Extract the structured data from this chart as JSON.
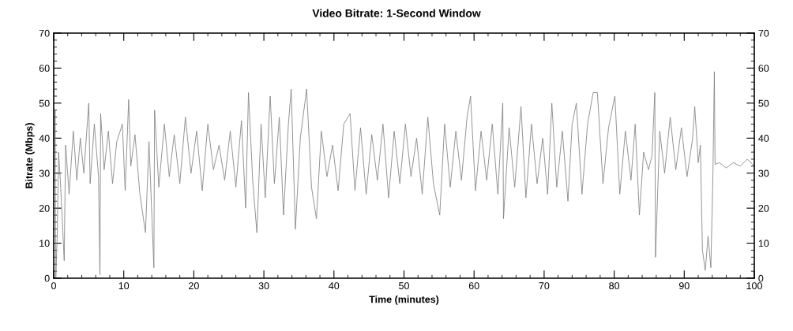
{
  "chart_data": {
    "type": "line",
    "title": "Video Bitrate: 1-Second Window",
    "xlabel": "Time (minutes)",
    "ylabel": "Bitrate (Mbps)",
    "xlim": [
      0,
      100
    ],
    "xticks": [
      0,
      10,
      20,
      30,
      40,
      50,
      60,
      70,
      80,
      90,
      100
    ],
    "ylim": [
      0,
      70
    ],
    "yticks": [
      0,
      10,
      20,
      30,
      40,
      50,
      60,
      70
    ],
    "y2lim": [
      0,
      70
    ],
    "y2ticks": [
      0,
      10,
      20,
      30,
      40,
      50,
      60,
      70
    ],
    "marker": "none",
    "line_style": "solid",
    "series": [
      {
        "color": "#7f7f7f",
        "x": [
          0,
          0.2,
          0.3,
          0.5,
          0.7,
          1.0,
          1.5,
          1.7,
          2.2,
          2.8,
          3.3,
          3.8,
          4.3,
          5.0,
          5.2,
          5.8,
          6.4,
          6.6,
          6.7,
          7.2,
          7.8,
          8.4,
          9.0,
          9.8,
          10.2,
          10.7,
          11.0,
          11.6,
          12.3,
          13.1,
          13.6,
          14.3,
          14.4,
          15.0,
          15.8,
          16.5,
          17.2,
          18.0,
          18.8,
          19.6,
          20.4,
          21.2,
          22.0,
          22.8,
          23.6,
          24.4,
          25.2,
          26.0,
          26.8,
          27.4,
          27.8,
          28.4,
          29.0,
          29.6,
          30.2,
          30.9,
          31.5,
          32.2,
          32.8,
          33.5,
          33.9,
          34.5,
          35.2,
          36.1,
          36.8,
          37.5,
          38.2,
          39.0,
          39.8,
          40.6,
          41.4,
          42.3,
          43.0,
          43.8,
          44.6,
          45.4,
          46.2,
          47.0,
          47.8,
          48.6,
          49.4,
          50.2,
          51.0,
          51.8,
          52.6,
          53.4,
          54.2,
          55.1,
          55.8,
          56.6,
          57.4,
          58.2,
          59.0,
          59.5,
          60.2,
          61.0,
          61.8,
          62.6,
          63.4,
          64.1,
          64.2,
          65.0,
          65.8,
          66.7,
          67.4,
          68.2,
          69.0,
          69.8,
          70.5,
          71.1,
          71.8,
          72.6,
          73.4,
          74.0,
          74.6,
          75.4,
          76.2,
          77.0,
          77.6,
          78.4,
          79.2,
          80.1,
          80.8,
          81.6,
          82.4,
          83.0,
          83.6,
          84.2,
          84.9,
          85.4,
          85.8,
          85.9,
          86.5,
          87.2,
          88.0,
          88.8,
          89.6,
          90.4,
          91.2,
          91.5,
          92.0,
          92.3,
          92.6,
          93.0,
          93.4,
          93.8,
          94.1,
          94.3,
          94.4,
          95.0,
          96.0,
          97.0,
          98.0,
          99.0,
          100
        ],
        "values": [
          24,
          48,
          0,
          12,
          36,
          26,
          5,
          38,
          24,
          42,
          28,
          40,
          30,
          50,
          27,
          44,
          29,
          1,
          47,
          31,
          42,
          27,
          39,
          44,
          25,
          51,
          32,
          41,
          24,
          13,
          39,
          3,
          48,
          26,
          44,
          29,
          41,
          27,
          46,
          30,
          42,
          25,
          44,
          31,
          38,
          28,
          42,
          26,
          45,
          20,
          53,
          28,
          13,
          44,
          23,
          52,
          27,
          46,
          18,
          44,
          54,
          14,
          40,
          54,
          26,
          17,
          42,
          29,
          38,
          25,
          44,
          47,
          25,
          43,
          24,
          41,
          28,
          44,
          23,
          42,
          27,
          44,
          29,
          40,
          24,
          46,
          27,
          18,
          44,
          26,
          42,
          28,
          46,
          52,
          25,
          42,
          28,
          44,
          24,
          50,
          17,
          43,
          26,
          49,
          23,
          44,
          27,
          40,
          24,
          50,
          26,
          42,
          22,
          44,
          50,
          24,
          44,
          53,
          53,
          27,
          43,
          52,
          24,
          42,
          28,
          44,
          18,
          36,
          31,
          35,
          53,
          6,
          42,
          30,
          46,
          31,
          43,
          29,
          40,
          49,
          33,
          38,
          8,
          2.2,
          12,
          3,
          30,
          59,
          32.5,
          33,
          31.5,
          33,
          32,
          34,
          32
        ]
      }
    ]
  }
}
